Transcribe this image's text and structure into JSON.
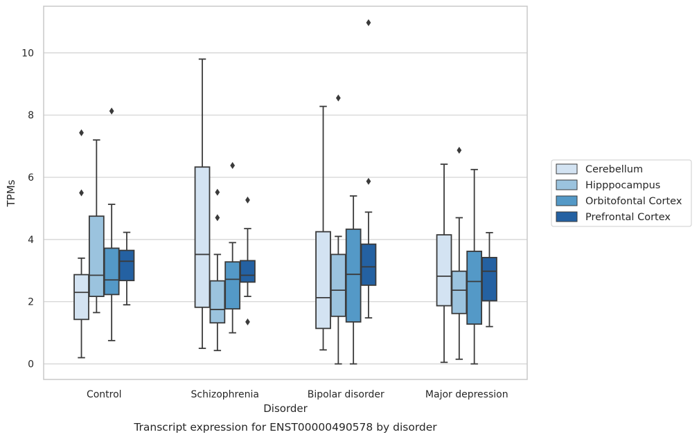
{
  "chart_data": {
    "type": "box",
    "caption": "Transcript expression for ENST00000490578 by disorder",
    "xlabel": "Disorder",
    "ylabel": "TPMs",
    "ylim": [
      -0.5,
      11.5
    ],
    "yticks": [
      0,
      2,
      4,
      6,
      8,
      10
    ],
    "grid": "horizontal",
    "legend_position": "right",
    "categories": [
      "Control",
      "Schizophrenia",
      "Bipolar disorder",
      "Major depression"
    ],
    "series": [
      {
        "name": "Cerebellum",
        "color": "#d3e3f2",
        "boxes": [
          {
            "whislo": 0.2,
            "q1": 1.43,
            "med": 2.3,
            "q3": 2.87,
            "whishi": 3.4,
            "fliers": [
              5.5,
              7.43
            ]
          },
          {
            "whislo": 0.5,
            "q1": 1.82,
            "med": 3.52,
            "q3": 6.33,
            "whishi": 9.8,
            "fliers": []
          },
          {
            "whislo": 0.45,
            "q1": 1.14,
            "med": 2.13,
            "q3": 4.25,
            "whishi": 8.28,
            "fliers": []
          },
          {
            "whislo": 0.05,
            "q1": 1.87,
            "med": 2.82,
            "q3": 4.15,
            "whishi": 6.42,
            "fliers": []
          }
        ]
      },
      {
        "name": "Hipppocampus",
        "color": "#9bc3de",
        "boxes": [
          {
            "whislo": 1.65,
            "q1": 2.17,
            "med": 2.85,
            "q3": 4.75,
            "whishi": 7.2,
            "fliers": []
          },
          {
            "whislo": 0.43,
            "q1": 1.32,
            "med": 1.75,
            "q3": 2.67,
            "whishi": 3.52,
            "fliers": [
              4.7,
              5.52
            ]
          },
          {
            "whislo": 0.0,
            "q1": 1.53,
            "med": 2.37,
            "q3": 3.52,
            "whishi": 4.1,
            "fliers": [
              8.55
            ]
          },
          {
            "whislo": 0.15,
            "q1": 1.62,
            "med": 2.37,
            "q3": 2.98,
            "whishi": 4.7,
            "fliers": [
              6.87
            ]
          }
        ]
      },
      {
        "name": "Orbitofontal Cortex",
        "color": "#5499c7",
        "boxes": [
          {
            "whislo": 0.75,
            "q1": 2.23,
            "med": 2.7,
            "q3": 3.72,
            "whishi": 5.13,
            "fliers": [
              8.13
            ]
          },
          {
            "whislo": 1.0,
            "q1": 1.77,
            "med": 2.72,
            "q3": 3.28,
            "whishi": 3.9,
            "fliers": [
              6.38
            ]
          },
          {
            "whislo": 0.0,
            "q1": 1.35,
            "med": 2.88,
            "q3": 4.33,
            "whishi": 5.4,
            "fliers": []
          },
          {
            "whislo": 0.0,
            "q1": 1.28,
            "med": 2.65,
            "q3": 3.62,
            "whishi": 6.25,
            "fliers": []
          }
        ]
      },
      {
        "name": "Prefrontal Cortex",
        "color": "#2461a2",
        "boxes": [
          {
            "whislo": 1.9,
            "q1": 2.68,
            "med": 3.3,
            "q3": 3.65,
            "whishi": 4.23,
            "fliers": []
          },
          {
            "whislo": 2.17,
            "q1": 2.63,
            "med": 2.85,
            "q3": 3.32,
            "whishi": 4.35,
            "fliers": [
              1.35,
              5.27
            ]
          },
          {
            "whislo": 1.48,
            "q1": 2.53,
            "med": 3.12,
            "q3": 3.85,
            "whishi": 4.88,
            "fliers": [
              5.87,
              10.97
            ]
          },
          {
            "whislo": 1.2,
            "q1": 2.03,
            "med": 2.98,
            "q3": 3.42,
            "whishi": 4.22,
            "fliers": []
          }
        ]
      }
    ]
  },
  "colors": {
    "line": "#3a3a3a",
    "grid": "#d0d0d0",
    "frame": "#c8c8c8"
  }
}
